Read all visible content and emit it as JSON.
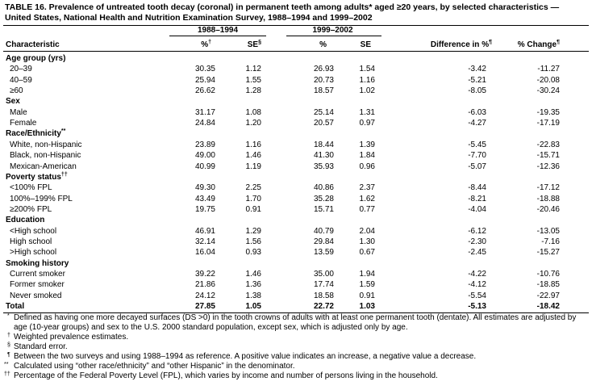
{
  "title": "TABLE 16. Prevalence of untreated tooth decay (coronal) in permanent teeth among adults* aged ≥20 years, by selected characteristics — United States, National Health and Nutrition Examination Survey, 1988–1994 and 1999–2002",
  "header": {
    "characteristic": "Characteristic",
    "period1": "1988–1994",
    "period2": "1999–2002",
    "columns": [
      {
        "label": "%",
        "mark": "†"
      },
      {
        "label": "SE",
        "mark": "§"
      },
      {
        "label": "%"
      },
      {
        "label": "SE"
      },
      {
        "label": "Difference in %",
        "mark": "¶"
      },
      {
        "label": "% Change",
        "mark": "¶"
      }
    ]
  },
  "groups": [
    {
      "name": "Age group (yrs)",
      "rows": [
        [
          "20–39",
          "30.35",
          "1.12",
          "26.93",
          "1.54",
          "-3.42",
          "-11.27"
        ],
        [
          "40–59",
          "25.94",
          "1.55",
          "20.73",
          "1.16",
          "-5.21",
          "-20.08"
        ],
        [
          "≥60",
          "26.62",
          "1.28",
          "18.57",
          "1.02",
          "-8.05",
          "-30.24"
        ]
      ]
    },
    {
      "name": "Sex",
      "rows": [
        [
          "Male",
          "31.17",
          "1.08",
          "25.14",
          "1.31",
          "-6.03",
          "-19.35"
        ],
        [
          "Female",
          "24.84",
          "1.20",
          "20.57",
          "0.97",
          "-4.27",
          "-17.19"
        ]
      ]
    },
    {
      "name": "Race/Ethnicity",
      "mark": "**",
      "rows": [
        [
          "White, non-Hispanic",
          "23.89",
          "1.16",
          "18.44",
          "1.39",
          "-5.45",
          "-22.83"
        ],
        [
          "Black, non-Hispanic",
          "49.00",
          "1.46",
          "41.30",
          "1.84",
          "-7.70",
          "-15.71"
        ],
        [
          "Mexican-American",
          "40.99",
          "1.19",
          "35.93",
          "0.96",
          "-5.07",
          "-12.36"
        ]
      ]
    },
    {
      "name": "Poverty status",
      "mark": "††",
      "rows": [
        [
          "<100% FPL",
          "49.30",
          "2.25",
          "40.86",
          "2.37",
          "-8.44",
          "-17.12"
        ],
        [
          "100%–199% FPL",
          "43.49",
          "1.70",
          "35.28",
          "1.62",
          "-8.21",
          "-18.88"
        ],
        [
          "≥200% FPL",
          "19.75",
          "0.91",
          "15.71",
          "0.77",
          "-4.04",
          "-20.46"
        ]
      ]
    },
    {
      "name": "Education",
      "rows": [
        [
          "<High school",
          "46.91",
          "1.29",
          "40.79",
          "2.04",
          "-6.12",
          "-13.05"
        ],
        [
          "High school",
          "32.14",
          "1.56",
          "29.84",
          "1.30",
          "-2.30",
          "-7.16"
        ],
        [
          ">High school",
          "16.04",
          "0.93",
          "13.59",
          "0.67",
          "-2.45",
          "-15.27"
        ]
      ]
    },
    {
      "name": "Smoking history",
      "rows": [
        [
          "Current smoker",
          "39.22",
          "1.46",
          "35.00",
          "1.94",
          "-4.22",
          "-10.76"
        ],
        [
          "Former smoker",
          "21.86",
          "1.36",
          "17.74",
          "1.59",
          "-4.12",
          "-18.85"
        ],
        [
          "Never smoked",
          "24.12",
          "1.38",
          "18.58",
          "0.91",
          "-5.54",
          "-22.97"
        ]
      ]
    }
  ],
  "total": [
    "Total",
    "27.85",
    "1.05",
    "22.72",
    "1.03",
    "-5.13",
    "-18.42"
  ],
  "footnotes": [
    {
      "mark": "*",
      "text": "Defined as having one more decayed surfaces (DS >0) in the tooth crowns of adults with at least one permanent tooth (dentate). All estimates are adjusted by age (10-year groups) and sex to the U.S. 2000 standard population, except sex, which is adjusted only by age."
    },
    {
      "mark": "†",
      "text": "Weighted prevalence estimates."
    },
    {
      "mark": "§",
      "text": "Standard error."
    },
    {
      "mark": "¶",
      "text": "Between the two surveys and using 1988–1994 as reference. A positive value indicates an increase, a negative value a decrease."
    },
    {
      "mark": "**",
      "text": "Calculated using “other race/ethnicity” and “other Hispanic” in the denominator."
    },
    {
      "mark": "††",
      "text": "Percentage of the Federal Poverty Level (FPL), which varies by income and number of persons living in the household."
    }
  ]
}
